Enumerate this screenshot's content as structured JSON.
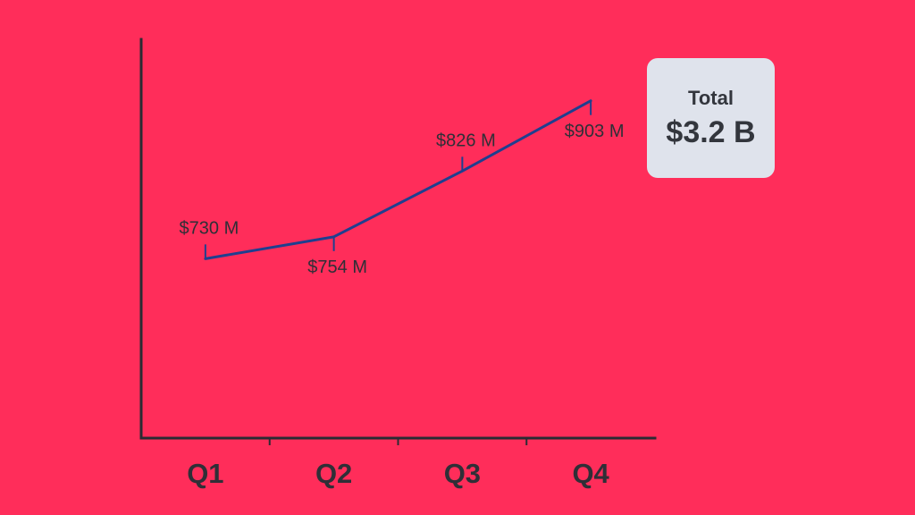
{
  "chart_data": {
    "type": "line",
    "categories": [
      "Q1",
      "Q2",
      "Q3",
      "Q4"
    ],
    "values": [
      730,
      754,
      826,
      903
    ],
    "data_labels": [
      "$730 M",
      "$754 M",
      "$826 M",
      "$903 M"
    ],
    "title": "",
    "xlabel": "",
    "ylabel": "",
    "grid": false,
    "legend": "none"
  },
  "summary": {
    "label": "Total",
    "value": "$3.2 B"
  },
  "colors": {
    "background": "#ff2d5a",
    "line": "#1f3f8f",
    "axis": "#2b2b33",
    "text": "#2f2f37",
    "panel": "#dfe3ec"
  }
}
